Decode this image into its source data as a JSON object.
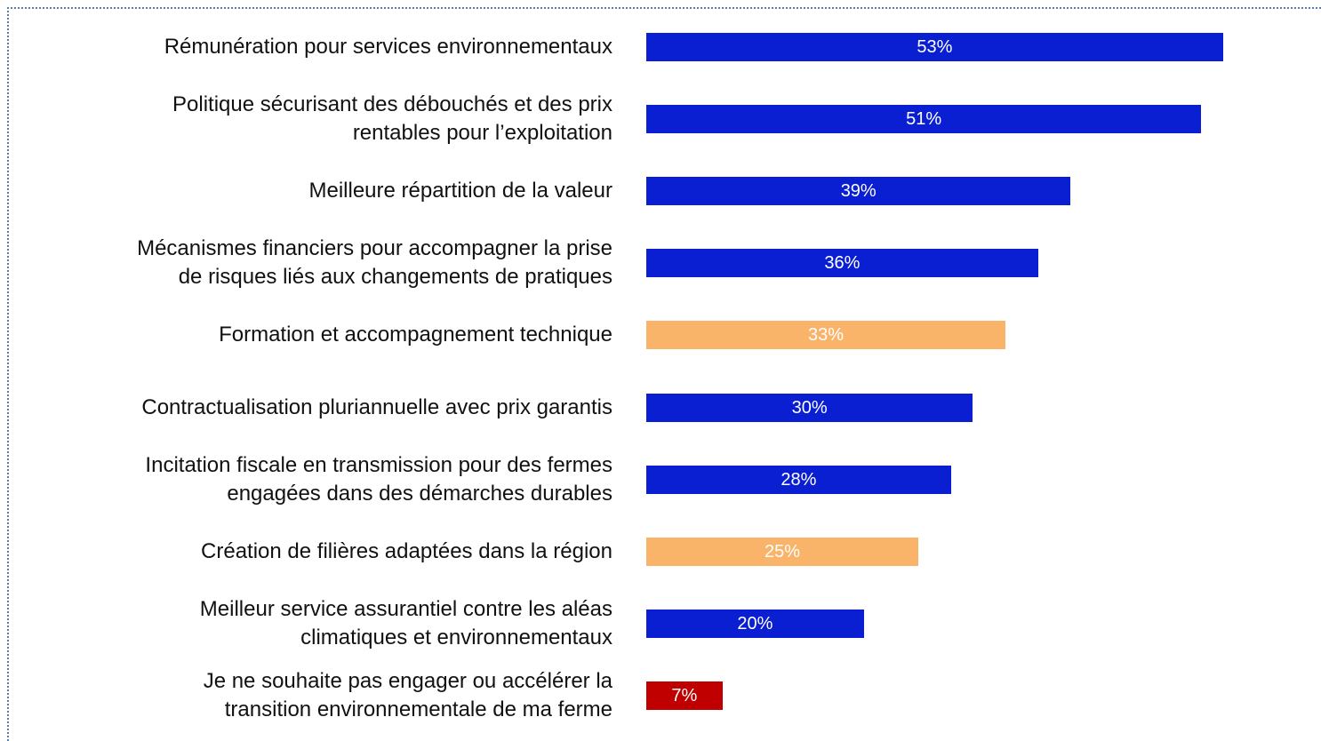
{
  "chart_data": {
    "type": "barh",
    "categories": [
      "Rémunération pour services environnementaux",
      "Politique sécurisant des débouchés et des prix\nrentables pour l’exploitation",
      "Meilleure répartition de la valeur",
      "Mécanismes financiers pour accompagner la prise\nde risques liés aux changements de pratiques",
      "Formation et accompagnement technique",
      "Contractualisation pluriannuelle avec prix garantis",
      "Incitation fiscale en transmission pour des fermes\nengagées dans des démarches durables",
      "Création de filières adaptées dans la région",
      "Meilleur service assurantiel contre les aléas\nclimatiques et environnementaux",
      "Je ne souhaite pas engager ou accélérer la\ntransition environnementale de ma ferme"
    ],
    "values": [
      53,
      51,
      39,
      36,
      33,
      30,
      28,
      25,
      20,
      7
    ],
    "value_labels": [
      "53%",
      "51%",
      "39%",
      "36%",
      "33%",
      "30%",
      "28%",
      "25%",
      "20%",
      "7%"
    ],
    "colors": [
      "#0a1ed2",
      "#0a1ed2",
      "#0a1ed2",
      "#0a1ed2",
      "#f9b46a",
      "#0a1ed2",
      "#0a1ed2",
      "#f9b46a",
      "#0a1ed2",
      "#c00000"
    ],
    "xlim": [
      0,
      62
    ]
  }
}
